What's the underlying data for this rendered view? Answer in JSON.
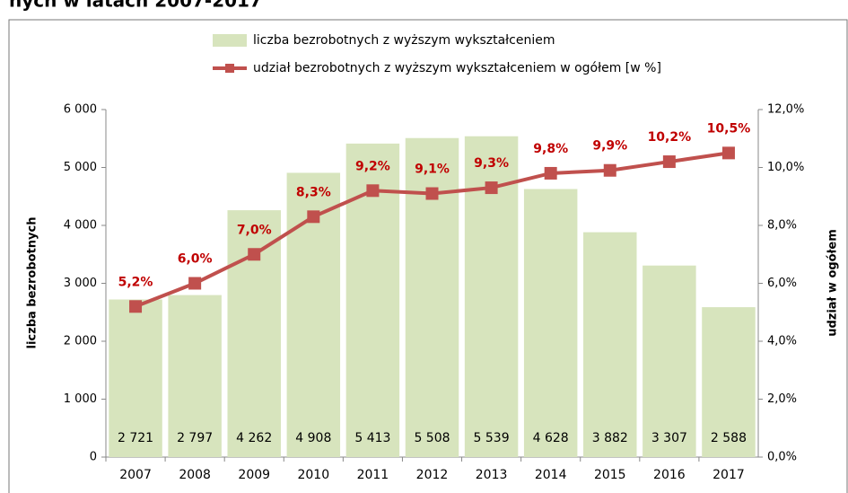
{
  "chart_data": {
    "type": "bar",
    "title": "nych w latach 2007-2017",
    "categories": [
      "2007",
      "2008",
      "2009",
      "2010",
      "2011",
      "2012",
      "2013",
      "2014",
      "2015",
      "2016",
      "2017"
    ],
    "series": [
      {
        "name": "liczba bezrobotnych z wyższym wykształceniem",
        "type": "bar",
        "color": "#d7e4bd",
        "values": [
          2721,
          2797,
          4262,
          4908,
          5413,
          5508,
          5539,
          4628,
          3882,
          3307,
          2588
        ],
        "value_labels": [
          "2 721",
          "2 797",
          "4 262",
          "4 908",
          "5 413",
          "5 508",
          "5 539",
          "4 628",
          "3 882",
          "3 307",
          "2 588"
        ]
      },
      {
        "name": "udział bezrobotnych z wyższym wykształceniem w ogółem [w %]",
        "type": "line",
        "axis": "y2",
        "color": "#c0504d",
        "values": [
          5.2,
          6.0,
          7.0,
          8.3,
          9.2,
          9.1,
          9.3,
          9.8,
          9.9,
          10.2,
          10.5
        ],
        "value_labels": [
          "5,2%",
          "6,0%",
          "7,0%",
          "8,3%",
          "9,2%",
          "9,1%",
          "9,3%",
          "9,8%",
          "9,9%",
          "10,2%",
          "10,5%"
        ]
      }
    ],
    "ylabel": "liczba bezrobotnych",
    "y2label": "udział w ogółem",
    "ylim": [
      0,
      6000
    ],
    "yticks": [
      0,
      {
        "value": 1000,
        "label": "1 000"
      },
      {
        "value": 2000,
        "label": "2 000"
      },
      {
        "value": 3000,
        "label": "3 000"
      },
      {
        "value": 4000,
        "label": "4 000"
      },
      {
        "value": 5000,
        "label": "5 000"
      },
      {
        "value": 6000,
        "label": "6 000"
      }
    ],
    "y2lim": [
      0,
      12
    ],
    "y2ticks": [
      {
        "value": 0,
        "label": "0,0%"
      },
      {
        "value": 2,
        "label": "2,0%"
      },
      {
        "value": 4,
        "label": "4,0%"
      },
      {
        "value": 6,
        "label": "6,0%"
      },
      {
        "value": 8,
        "label": "8,0%"
      },
      {
        "value": 10,
        "label": "10,0%"
      },
      {
        "value": 12,
        "label": "12,0%"
      }
    ]
  }
}
